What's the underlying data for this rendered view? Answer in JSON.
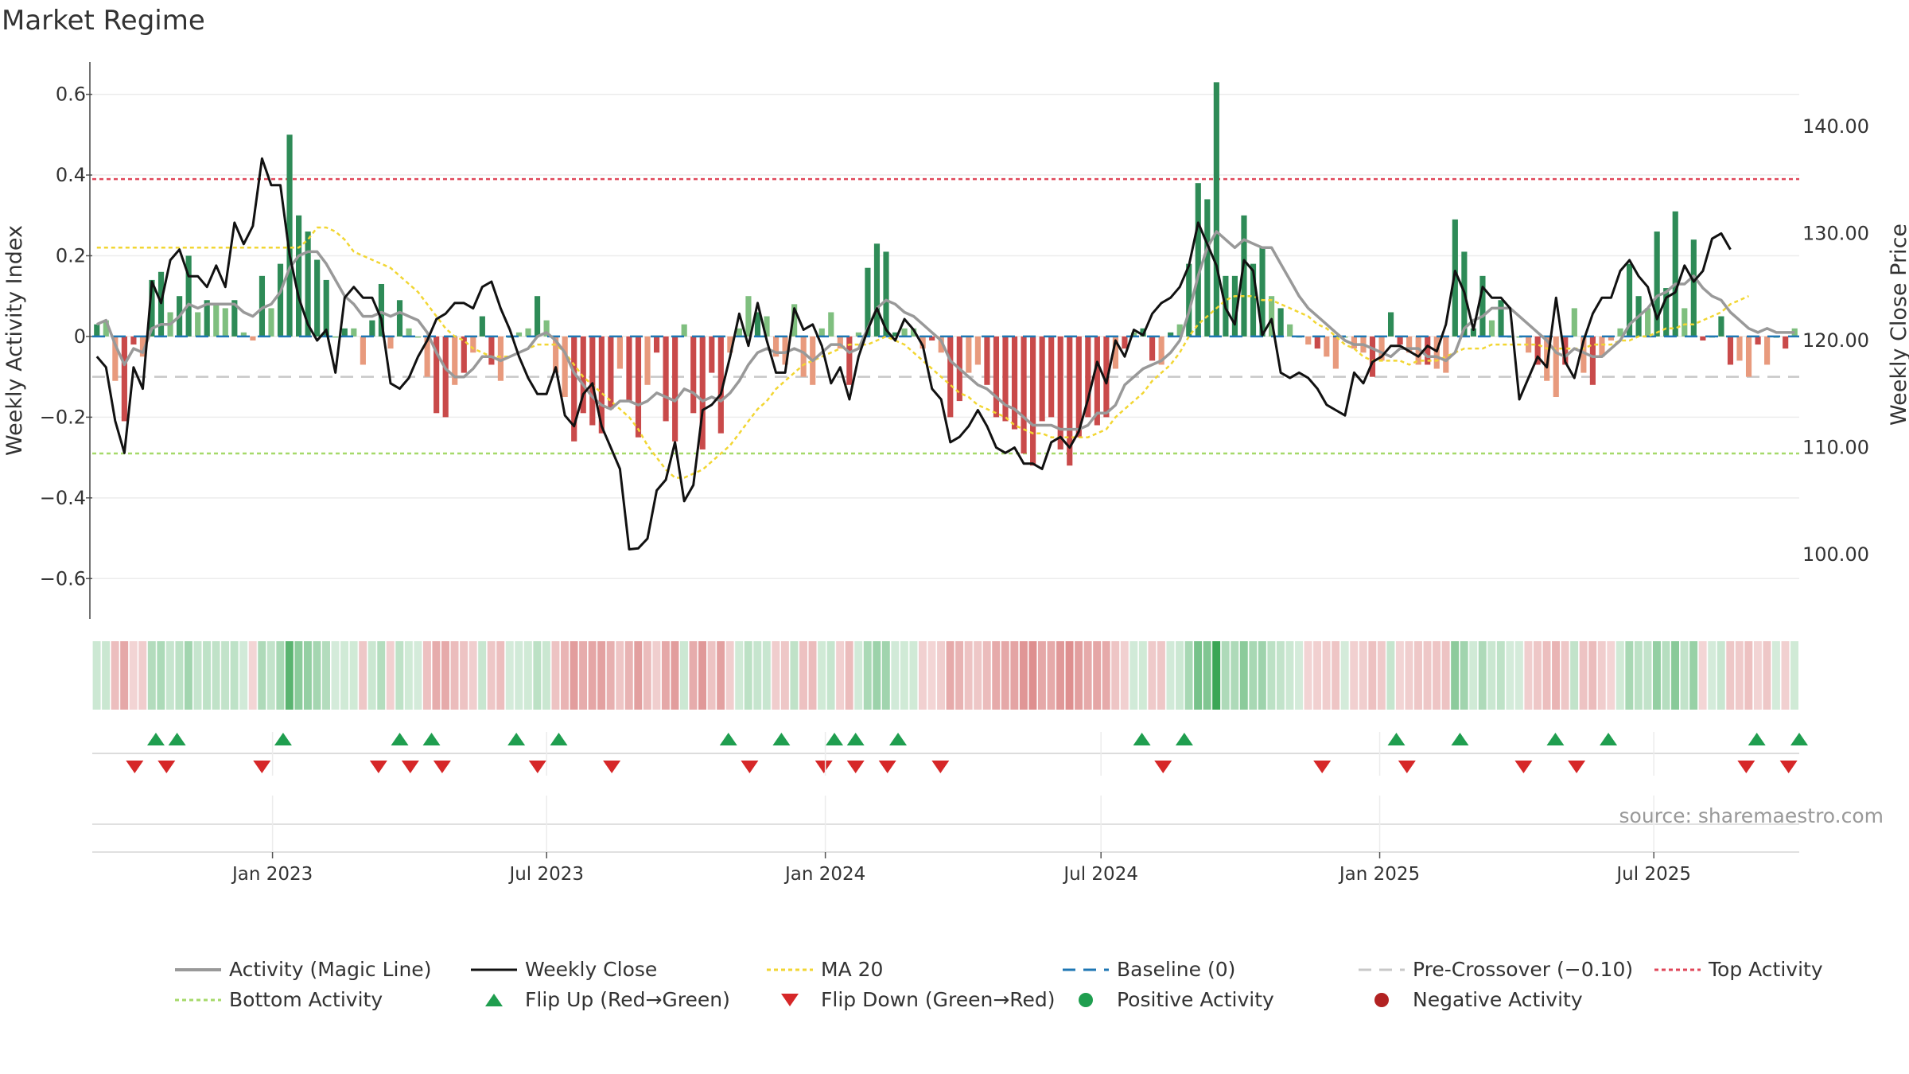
{
  "chart_data": {
    "type": "bar",
    "title": "Market Regime",
    "ylabel_left": "Weekly Activity Index",
    "ylabel_right": "Weekly Close Price",
    "source": "source: sharemaestro.com",
    "ylim_left": [
      -0.7,
      0.68
    ],
    "yticks_left": [
      "0.6",
      "0.4",
      "0.2",
      "0",
      "−0.2",
      "−0.4",
      "−0.6"
    ],
    "ylim_right": [
      94,
      146
    ],
    "yticks_right": [
      "140.00",
      "130.00",
      "120.00",
      "110.00",
      "100.00"
    ],
    "x_start": "2022-09-04",
    "x_end": "2025-10-05",
    "x_ticks": [
      "Jan 2023",
      "Jul 2023",
      "Jan 2024",
      "Jul 2024",
      "Jan 2025",
      "Jul 2025"
    ],
    "x_tick_dates": [
      "2023-01-01",
      "2023-07-01",
      "2024-01-01",
      "2024-07-01",
      "2025-01-01",
      "2025-07-01"
    ],
    "reference_lines": {
      "baseline": 0,
      "pre_crossover": -0.1,
      "top_activity": 0.39,
      "bottom_activity": -0.29
    },
    "activity": [
      0.03,
      0.04,
      -0.11,
      -0.21,
      -0.02,
      -0.05,
      0.14,
      0.16,
      0.06,
      0.1,
      0.2,
      0.06,
      0.09,
      0.08,
      0.07,
      0.09,
      0.01,
      -0.01,
      0.15,
      0.07,
      0.18,
      0.5,
      0.3,
      0.26,
      0.19,
      0.14,
      0.0,
      0.02,
      0.02,
      -0.07,
      0.04,
      0.13,
      -0.03,
      0.09,
      0.02,
      0.0,
      -0.1,
      -0.19,
      -0.2,
      -0.12,
      -0.09,
      -0.04,
      0.05,
      -0.07,
      -0.11,
      0.0,
      0.01,
      0.02,
      0.1,
      0.04,
      -0.09,
      -0.15,
      -0.26,
      -0.19,
      -0.22,
      -0.24,
      -0.18,
      -0.08,
      -0.16,
      -0.25,
      -0.12,
      -0.04,
      -0.21,
      -0.26,
      0.03,
      -0.19,
      -0.28,
      -0.09,
      -0.24,
      -0.04,
      0.02,
      0.1,
      0.06,
      0.05,
      -0.05,
      -0.07,
      0.08,
      -0.1,
      -0.12,
      0.02,
      0.06,
      -0.03,
      -0.12,
      0.01,
      0.17,
      0.23,
      0.21,
      0.01,
      0.02,
      0.02,
      -0.03,
      -0.01,
      -0.04,
      -0.2,
      -0.16,
      -0.09,
      -0.07,
      -0.12,
      -0.2,
      -0.21,
      -0.23,
      -0.29,
      -0.32,
      -0.21,
      -0.2,
      -0.28,
      -0.32,
      -0.25,
      -0.2,
      -0.22,
      -0.2,
      -0.08,
      -0.03,
      0.01,
      0.02,
      -0.06,
      -0.07,
      0.01,
      0.03,
      0.18,
      0.38,
      0.34,
      0.63,
      0.15,
      0.15,
      0.3,
      0.18,
      0.22,
      0.1,
      0.07,
      0.03,
      0.0,
      -0.02,
      -0.03,
      -0.05,
      -0.08,
      0.0,
      -0.03,
      -0.04,
      -0.1,
      -0.06,
      0.06,
      -0.02,
      -0.04,
      -0.07,
      -0.07,
      -0.08,
      -0.09,
      0.29,
      0.21,
      0.02,
      0.15,
      0.04,
      0.09,
      0.0,
      0.0,
      -0.04,
      -0.07,
      -0.11,
      -0.15,
      -0.07,
      0.07,
      -0.09,
      -0.12,
      -0.05,
      -0.01,
      0.02,
      0.18,
      0.1,
      0.07,
      0.26,
      0.12,
      0.31,
      0.07,
      0.24,
      -0.01,
      0.0,
      0.05,
      -0.07,
      -0.06,
      -0.1,
      -0.02,
      -0.07,
      0.0,
      -0.03,
      0.02
    ],
    "magic_line": [
      0.03,
      0.04,
      -0.02,
      -0.07,
      -0.03,
      -0.04,
      0.02,
      0.03,
      0.03,
      0.05,
      0.08,
      0.07,
      0.08,
      0.08,
      0.08,
      0.08,
      0.06,
      0.05,
      0.07,
      0.08,
      0.11,
      0.17,
      0.2,
      0.21,
      0.21,
      0.18,
      0.14,
      0.1,
      0.08,
      0.05,
      0.05,
      0.06,
      0.05,
      0.06,
      0.05,
      0.04,
      0.01,
      -0.04,
      -0.08,
      -0.1,
      -0.1,
      -0.08,
      -0.05,
      -0.05,
      -0.06,
      -0.05,
      -0.04,
      -0.03,
      0.0,
      0.01,
      -0.01,
      -0.04,
      -0.09,
      -0.12,
      -0.15,
      -0.17,
      -0.18,
      -0.16,
      -0.16,
      -0.17,
      -0.16,
      -0.14,
      -0.15,
      -0.16,
      -0.13,
      -0.14,
      -0.16,
      -0.15,
      -0.16,
      -0.14,
      -0.11,
      -0.07,
      -0.04,
      -0.03,
      -0.04,
      -0.04,
      -0.03,
      -0.04,
      -0.06,
      -0.04,
      -0.02,
      -0.02,
      -0.04,
      -0.03,
      0.02,
      0.07,
      0.09,
      0.08,
      0.06,
      0.05,
      0.03,
      0.01,
      -0.01,
      -0.06,
      -0.08,
      -0.1,
      -0.12,
      -0.13,
      -0.15,
      -0.17,
      -0.18,
      -0.2,
      -0.22,
      -0.22,
      -0.22,
      -0.23,
      -0.23,
      -0.23,
      -0.22,
      -0.19,
      -0.19,
      -0.17,
      -0.12,
      -0.1,
      -0.08,
      -0.07,
      -0.06,
      -0.04,
      -0.01,
      0.06,
      0.15,
      0.22,
      0.26,
      0.24,
      0.22,
      0.24,
      0.23,
      0.22,
      0.22,
      0.18,
      0.14,
      0.1,
      0.07,
      0.05,
      0.03,
      0.01,
      -0.01,
      -0.02,
      -0.02,
      -0.03,
      -0.04,
      -0.05,
      -0.03,
      -0.03,
      -0.03,
      -0.05,
      -0.05,
      -0.06,
      -0.04,
      0.02,
      0.04,
      0.05,
      0.07,
      0.07,
      0.07,
      0.05,
      0.03,
      0.01,
      -0.01,
      -0.04,
      -0.05,
      -0.03,
      -0.04,
      -0.05,
      -0.05,
      -0.03,
      -0.01,
      0.03,
      0.05,
      0.07,
      0.1,
      0.11,
      0.13,
      0.13,
      0.15,
      0.12,
      0.1,
      0.09,
      0.06,
      0.04,
      0.02,
      0.01,
      0.02,
      0.01,
      0.01,
      0.01
    ],
    "ma20": [
      0.22,
      0.22,
      0.22,
      0.22,
      0.22,
      0.22,
      0.22,
      0.22,
      0.22,
      0.22,
      0.22,
      0.22,
      0.22,
      0.22,
      0.22,
      0.22,
      0.22,
      0.22,
      0.22,
      0.22,
      0.22,
      0.22,
      0.22,
      0.24,
      0.27,
      0.27,
      0.26,
      0.24,
      0.21,
      0.2,
      0.19,
      0.18,
      0.17,
      0.15,
      0.13,
      0.11,
      0.08,
      0.05,
      0.02,
      0.0,
      -0.01,
      -0.03,
      -0.04,
      -0.05,
      -0.05,
      -0.05,
      -0.04,
      -0.03,
      -0.02,
      -0.02,
      -0.02,
      -0.04,
      -0.07,
      -0.1,
      -0.12,
      -0.14,
      -0.16,
      -0.18,
      -0.2,
      -0.23,
      -0.27,
      -0.3,
      -0.33,
      -0.35,
      -0.35,
      -0.34,
      -0.33,
      -0.31,
      -0.29,
      -0.27,
      -0.24,
      -0.21,
      -0.18,
      -0.16,
      -0.13,
      -0.11,
      -0.09,
      -0.07,
      -0.06,
      -0.05,
      -0.04,
      -0.03,
      -0.02,
      -0.02,
      -0.02,
      -0.01,
      0.0,
      -0.01,
      -0.02,
      -0.04,
      -0.06,
      -0.08,
      -0.1,
      -0.12,
      -0.14,
      -0.15,
      -0.17,
      -0.18,
      -0.19,
      -0.2,
      -0.22,
      -0.23,
      -0.24,
      -0.24,
      -0.25,
      -0.25,
      -0.25,
      -0.25,
      -0.25,
      -0.24,
      -0.23,
      -0.2,
      -0.18,
      -0.16,
      -0.14,
      -0.11,
      -0.09,
      -0.07,
      -0.04,
      0.0,
      0.03,
      0.05,
      0.07,
      0.09,
      0.1,
      0.1,
      0.1,
      0.09,
      0.09,
      0.08,
      0.07,
      0.06,
      0.05,
      0.03,
      0.02,
      0.0,
      -0.02,
      -0.03,
      -0.05,
      -0.06,
      -0.06,
      -0.06,
      -0.06,
      -0.07,
      -0.06,
      -0.06,
      -0.06,
      -0.05,
      -0.04,
      -0.03,
      -0.03,
      -0.03,
      -0.02,
      -0.02,
      -0.02,
      -0.02,
      -0.02,
      -0.02,
      -0.03,
      -0.03,
      -0.03,
      -0.03,
      -0.03,
      -0.02,
      -0.02,
      -0.02,
      -0.01,
      -0.01,
      0.0,
      0.0,
      0.01,
      0.02,
      0.02,
      0.03,
      0.03,
      0.04,
      0.05,
      0.06,
      0.08,
      0.09,
      0.1
    ],
    "close": [
      118.5,
      117.5,
      112.5,
      109.5,
      117.5,
      115.5,
      125.5,
      123.5,
      127.5,
      128.5,
      126.0,
      126.0,
      125.0,
      127.0,
      125.0,
      131.0,
      129.0,
      130.7,
      137.0,
      134.5,
      134.5,
      128.0,
      124.0,
      121.5,
      120.0,
      121.0,
      117.0,
      124.0,
      125.0,
      124.0,
      124.0,
      122.0,
      116.0,
      115.5,
      116.5,
      118.5,
      120.0,
      122.0,
      122.5,
      123.5,
      123.5,
      123.0,
      125.0,
      125.5,
      123.0,
      121.0,
      118.5,
      116.5,
      115.0,
      115.0,
      117.5,
      113.0,
      112.0,
      115.0,
      116.0,
      112.0,
      110.0,
      108.0,
      100.5,
      100.6,
      101.5,
      106.0,
      107.0,
      110.5,
      105.0,
      106.5,
      113.5,
      114.0,
      115.0,
      118.5,
      122.5,
      119.5,
      123.5,
      120.0,
      117.0,
      117.0,
      123.0,
      121.0,
      121.5,
      119.5,
      116.0,
      117.5,
      114.5,
      118.5,
      121.0,
      123.0,
      121.0,
      120.0,
      122.0,
      121.0,
      119.5,
      115.5,
      114.5,
      110.5,
      111.0,
      112.0,
      113.5,
      112.0,
      110.0,
      109.5,
      110.0,
      108.5,
      108.5,
      108.0,
      110.5,
      111.0,
      110.0,
      111.5,
      114.5,
      118.0,
      116.0,
      120.0,
      118.5,
      121.0,
      120.5,
      122.5,
      123.5,
      124.0,
      125.0,
      127.0,
      131.0,
      129.0,
      127.0,
      123.0,
      121.5,
      127.5,
      126.5,
      120.5,
      122.0,
      117.0,
      116.5,
      117.0,
      116.5,
      115.5,
      114.0,
      113.5,
      113.0,
      117.0,
      116.0,
      118.0,
      118.5,
      119.5,
      119.5,
      119.0,
      118.5,
      119.5,
      119.0,
      121.5,
      126.5,
      124.5,
      121.0,
      125.0,
      124.0,
      124.0,
      123.0,
      114.5,
      116.5,
      118.5,
      117.5,
      124.0,
      118.0,
      116.5,
      120.0,
      122.5,
      124.0,
      124.0,
      126.5,
      127.5,
      126.0,
      125.0,
      122.0,
      124.0,
      124.5,
      127.0,
      125.5,
      126.5,
      129.5,
      130.0,
      128.5
    ],
    "flip_up_dates": [
      "2022-10-16",
      "2022-10-30",
      "2023-01-08",
      "2023-03-26",
      "2023-04-16",
      "2023-06-11",
      "2023-07-09",
      "2023-10-29",
      "2023-12-03",
      "2024-01-07",
      "2024-01-21",
      "2024-02-18",
      "2024-07-28",
      "2024-08-25",
      "2025-01-12",
      "2025-02-23",
      "2025-04-27",
      "2025-06-01",
      "2025-09-07",
      "2025-10-05"
    ],
    "flip_down_dates": [
      "2022-10-02",
      "2022-10-23",
      "2022-12-25",
      "2023-03-12",
      "2023-04-02",
      "2023-04-23",
      "2023-06-25",
      "2023-08-13",
      "2023-11-12",
      "2023-12-31",
      "2024-01-21",
      "2024-02-11",
      "2024-03-17",
      "2024-08-11",
      "2024-11-24",
      "2025-01-19",
      "2025-04-06",
      "2025-05-11",
      "2025-08-31",
      "2025-09-28"
    ],
    "series": [
      {
        "name": "Activity (Magic Line)",
        "color": "#999999"
      },
      {
        "name": "Weekly Close",
        "color": "#111111"
      },
      {
        "name": "MA 20",
        "color": "#f2d633"
      },
      {
        "name": "Baseline (0)",
        "color": "#1f77b4"
      },
      {
        "name": "Pre-Crossover (−0.10)",
        "color": "#c8c8c8"
      },
      {
        "name": "Top Activity",
        "color": "#e0475a"
      },
      {
        "name": "Bottom Activity",
        "color": "#a6d96a"
      },
      {
        "name": "Flip Up (Red→Green)",
        "color": "#1f9e4f"
      },
      {
        "name": "Flip Down (Green→Red)",
        "color": "#d62728"
      },
      {
        "name": "Positive Activity",
        "color": "#1f9e4f"
      },
      {
        "name": "Negative Activity",
        "color": "#b22222"
      }
    ],
    "colors": {
      "pos_strong": "#2e8b57",
      "pos_light": "#7fbf7f",
      "neg_strong": "#c94a4a",
      "neg_light": "#e89a7d",
      "grid": "#ececec"
    }
  }
}
